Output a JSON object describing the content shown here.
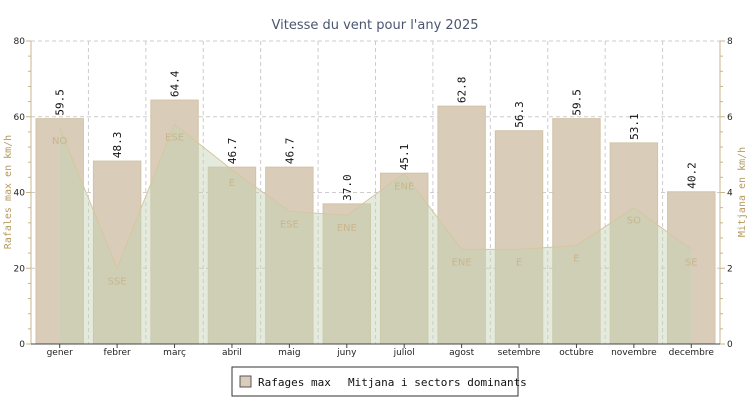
{
  "chart_data": {
    "type": "bar",
    "title": "Vitesse du vent pour l'any 2025",
    "categories": [
      "gener",
      "febrer",
      "març",
      "abril",
      "maig",
      "juny",
      "juliol",
      "agost",
      "setembre",
      "octubre",
      "novembre",
      "decembre"
    ],
    "series": [
      {
        "name": "Rafages max",
        "type": "bar",
        "axis": "left",
        "values": [
          59.5,
          48.3,
          64.4,
          46.7,
          46.7,
          37.0,
          45.1,
          62.8,
          56.3,
          59.5,
          53.1,
          40.2
        ],
        "labels": [
          "59.5",
          "48.3",
          "64.4",
          "46.7",
          "46.7",
          "37.0",
          "45.1",
          "62.8",
          "56.3",
          "59.5",
          "53.1",
          "40.2"
        ]
      },
      {
        "name": "Mitjana i sectors dominants",
        "type": "area",
        "axis": "right",
        "values": [
          5.7,
          2.0,
          5.8,
          4.6,
          3.5,
          3.4,
          4.5,
          2.5,
          2.5,
          2.6,
          3.6,
          2.5
        ],
        "sectors": [
          "NO",
          "SSE",
          "ESE",
          "E",
          "ESE",
          "ENE",
          "ENE",
          "ENE",
          "E",
          "E",
          "SO",
          "SE"
        ]
      }
    ],
    "ylabel": "Rafales max en km/h",
    "y2label": "Mitjana en km/h",
    "ylim": [
      0,
      80
    ],
    "y2lim": [
      0,
      8
    ],
    "yticks": [
      "0",
      "20",
      "40",
      "60",
      "80"
    ],
    "y2ticks": [
      "0",
      "2",
      "4",
      "6",
      "8"
    ],
    "grid": true,
    "legend_position": "bottom-center",
    "colors": {
      "bar": "#d9cdb9",
      "bar_edge": "#d2c3a6",
      "area": "#c4d3b4",
      "area_line": "#d6c6a1",
      "sector_text": "#c9b58c",
      "grid": "#cccccc",
      "axis": "#c9b58c"
    }
  }
}
